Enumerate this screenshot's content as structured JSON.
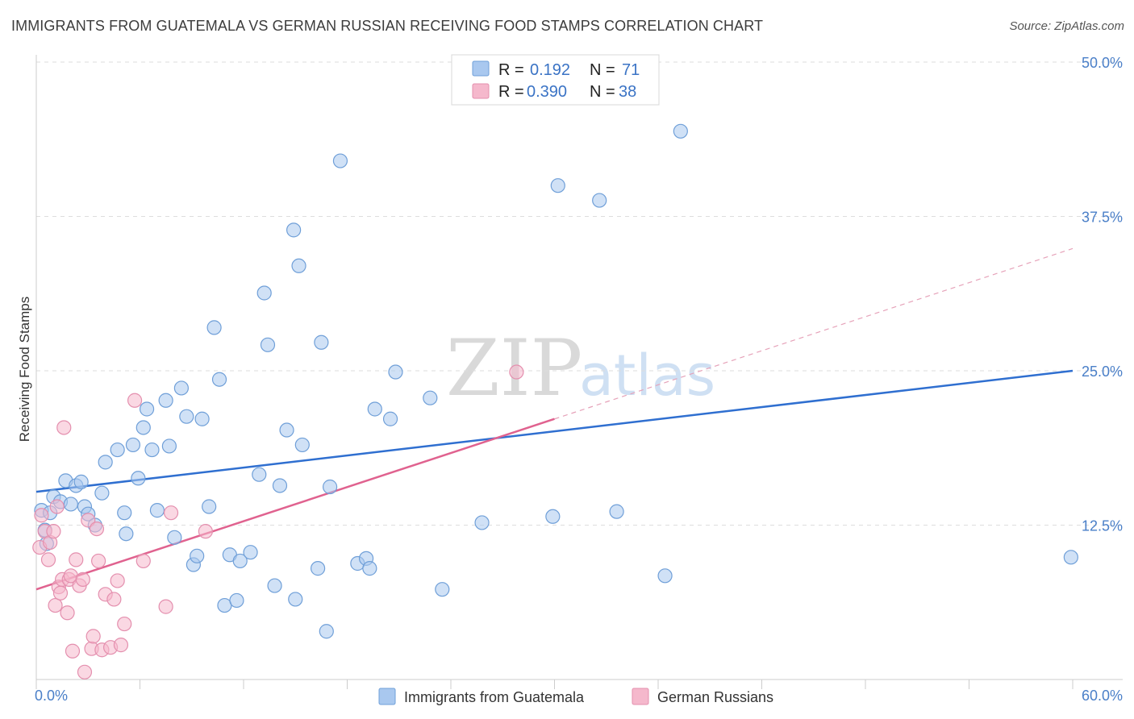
{
  "header": {
    "title": "IMMIGRANTS FROM GUATEMALA VS GERMAN RUSSIAN RECEIVING FOOD STAMPS CORRELATION CHART",
    "source": "Source: ZipAtlas.com"
  },
  "watermark": {
    "zip": "ZIP",
    "atlas": "atlas"
  },
  "legend": {
    "entries": [
      {
        "r_label": "R =",
        "r_value": "0.192",
        "n_label": "N =",
        "n_value": "71",
        "color": "#a9c8ef"
      },
      {
        "r_label": "R =",
        "r_value": "0.390",
        "n_label": "N =",
        "n_value": "38",
        "color": "#f5b8cc"
      }
    ]
  },
  "chart_data": {
    "type": "scatter",
    "title": "IMMIGRANTS FROM GUATEMALA VS GERMAN RUSSIAN RECEIVING FOOD STAMPS CORRELATION CHART",
    "xlabel": "",
    "ylabel": "Receiving Food Stamps",
    "xlim": [
      0,
      60
    ],
    "ylim": [
      0,
      50
    ],
    "x_tick_labels": [
      "0.0%",
      "60.0%"
    ],
    "y_ticks": [
      12.5,
      25.0,
      37.5,
      50.0
    ],
    "y_tick_labels": [
      "12.5%",
      "25.0%",
      "37.5%",
      "50.0%"
    ],
    "grid": "horizontal dashed",
    "legend_placement": "top-center",
    "series": [
      {
        "name": "Immigrants from Guatemala",
        "color": "#a9c8ef",
        "stroke": "#6f9fd8",
        "trend": {
          "x": [
            0,
            60
          ],
          "y": [
            15.2,
            25.0
          ],
          "color": "#2f6fd0"
        },
        "points": [
          [
            0.3,
            13.7
          ],
          [
            0.5,
            12.1
          ],
          [
            0.6,
            11.0
          ],
          [
            0.8,
            13.5
          ],
          [
            1.0,
            14.8
          ],
          [
            1.4,
            14.4
          ],
          [
            1.7,
            16.1
          ],
          [
            2.0,
            14.2
          ],
          [
            2.3,
            15.7
          ],
          [
            2.6,
            16.0
          ],
          [
            2.8,
            14.0
          ],
          [
            3.0,
            13.4
          ],
          [
            3.4,
            12.5
          ],
          [
            3.8,
            15.1
          ],
          [
            4.0,
            17.6
          ],
          [
            4.7,
            18.6
          ],
          [
            5.1,
            13.5
          ],
          [
            5.2,
            11.8
          ],
          [
            5.6,
            19.0
          ],
          [
            5.9,
            16.3
          ],
          [
            6.2,
            20.4
          ],
          [
            6.4,
            21.9
          ],
          [
            6.7,
            18.6
          ],
          [
            7.0,
            13.7
          ],
          [
            7.5,
            22.6
          ],
          [
            7.7,
            18.9
          ],
          [
            8.0,
            11.5
          ],
          [
            8.4,
            23.6
          ],
          [
            8.7,
            21.3
          ],
          [
            9.1,
            9.3
          ],
          [
            9.3,
            10.0
          ],
          [
            9.6,
            21.1
          ],
          [
            10.0,
            14.0
          ],
          [
            10.3,
            28.5
          ],
          [
            10.6,
            24.3
          ],
          [
            10.9,
            6.0
          ],
          [
            11.2,
            10.1
          ],
          [
            11.6,
            6.4
          ],
          [
            11.8,
            9.6
          ],
          [
            12.4,
            10.3
          ],
          [
            12.9,
            16.6
          ],
          [
            13.2,
            31.3
          ],
          [
            13.4,
            27.1
          ],
          [
            13.8,
            7.6
          ],
          [
            14.1,
            15.7
          ],
          [
            14.5,
            20.2
          ],
          [
            14.9,
            36.4
          ],
          [
            15.0,
            6.5
          ],
          [
            15.2,
            33.5
          ],
          [
            15.4,
            19.0
          ],
          [
            16.3,
            9.0
          ],
          [
            16.5,
            27.3
          ],
          [
            16.8,
            3.9
          ],
          [
            17.0,
            15.6
          ],
          [
            17.6,
            42.0
          ],
          [
            18.6,
            9.4
          ],
          [
            19.1,
            9.8
          ],
          [
            19.3,
            9.0
          ],
          [
            19.6,
            21.9
          ],
          [
            20.5,
            21.1
          ],
          [
            20.8,
            24.9
          ],
          [
            22.8,
            22.8
          ],
          [
            23.5,
            7.3
          ],
          [
            25.8,
            12.7
          ],
          [
            29.9,
            13.2
          ],
          [
            30.2,
            40.0
          ],
          [
            32.6,
            38.8
          ],
          [
            33.6,
            13.6
          ],
          [
            36.4,
            8.4
          ],
          [
            37.3,
            44.4
          ],
          [
            59.9,
            9.9
          ]
        ]
      },
      {
        "name": "German Russians",
        "color": "#f5b8cc",
        "stroke": "#e48fae",
        "trend": {
          "x": [
            0,
            30
          ],
          "y": [
            7.3,
            21.1
          ],
          "color": "#e0628f"
        },
        "trend_dashed": {
          "x": [
            30,
            60
          ],
          "y": [
            21.1,
            34.9
          ],
          "color": "#e6a2b9"
        },
        "points": [
          [
            0.2,
            10.7
          ],
          [
            0.3,
            13.3
          ],
          [
            0.5,
            12.0
          ],
          [
            0.7,
            9.7
          ],
          [
            0.8,
            11.1
          ],
          [
            1.0,
            12.0
          ],
          [
            1.1,
            6.0
          ],
          [
            1.2,
            14.0
          ],
          [
            1.3,
            7.5
          ],
          [
            1.4,
            7.0
          ],
          [
            1.5,
            8.1
          ],
          [
            1.6,
            20.4
          ],
          [
            1.8,
            5.4
          ],
          [
            1.9,
            8.1
          ],
          [
            2.0,
            8.4
          ],
          [
            2.1,
            2.3
          ],
          [
            2.3,
            9.7
          ],
          [
            2.5,
            7.6
          ],
          [
            2.7,
            8.1
          ],
          [
            2.8,
            0.6
          ],
          [
            3.0,
            12.9
          ],
          [
            3.2,
            2.5
          ],
          [
            3.3,
            3.5
          ],
          [
            3.5,
            12.2
          ],
          [
            3.6,
            9.6
          ],
          [
            3.8,
            2.4
          ],
          [
            4.0,
            6.9
          ],
          [
            4.3,
            2.6
          ],
          [
            4.5,
            6.5
          ],
          [
            4.7,
            8.0
          ],
          [
            4.9,
            2.8
          ],
          [
            5.1,
            4.5
          ],
          [
            5.7,
            22.6
          ],
          [
            6.2,
            9.6
          ],
          [
            7.5,
            5.9
          ],
          [
            7.8,
            13.5
          ],
          [
            9.8,
            12.0
          ],
          [
            27.8,
            24.9
          ]
        ]
      }
    ]
  }
}
